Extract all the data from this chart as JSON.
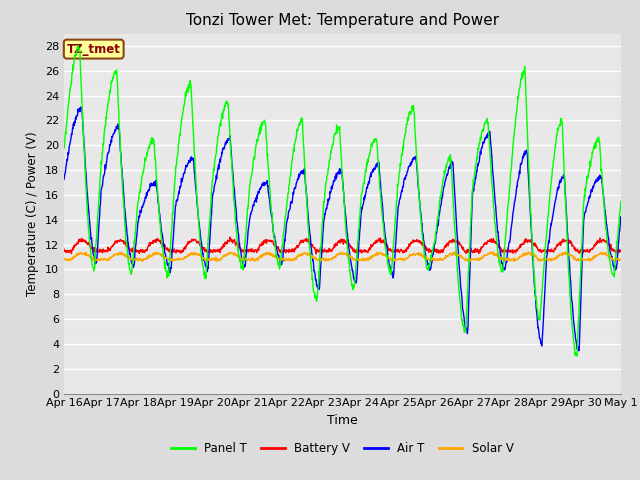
{
  "title": "Tonzi Tower Met: Temperature and Power",
  "xlabel": "Time",
  "ylabel": "Temperature (C) / Power (V)",
  "ylim": [
    0,
    29
  ],
  "yticks": [
    0,
    2,
    4,
    6,
    8,
    10,
    12,
    14,
    16,
    18,
    20,
    22,
    24,
    26,
    28
  ],
  "x_labels": [
    "Apr 16",
    "Apr 17",
    "Apr 18",
    "Apr 19",
    "Apr 20",
    "Apr 21",
    "Apr 22",
    "Apr 23",
    "Apr 24",
    "Apr 25",
    "Apr 26",
    "Apr 27",
    "Apr 28",
    "Apr 29",
    "Apr 30",
    "May 1"
  ],
  "colors": {
    "panel_t": "#00FF00",
    "battery_v": "#FF0000",
    "air_t": "#0000FF",
    "solar_v": "#FFA500"
  },
  "background_color": "#DCDCDC",
  "plot_bg_color": "#E8E8E8",
  "annotation_text": "TZ_tmet",
  "annotation_bg": "#FFFF99",
  "annotation_border": "#8B4513",
  "panel_t_peaks": [
    28.0,
    26.0,
    20.5,
    25.0,
    23.5,
    22.0,
    22.0,
    21.5,
    20.5,
    23.0,
    19.0,
    22.0,
    26.0,
    22.0,
    20.5
  ],
  "panel_t_troughs": [
    10.0,
    9.8,
    9.5,
    9.5,
    10.0,
    10.3,
    7.5,
    8.5,
    9.8,
    10.0,
    5.0,
    9.8,
    6.0,
    3.0,
    9.5
  ],
  "air_t_peaks": [
    23.0,
    21.5,
    17.0,
    19.0,
    20.5,
    17.0,
    18.0,
    18.0,
    18.5,
    19.0,
    18.5,
    21.0,
    19.5,
    17.5,
    17.5
  ],
  "air_t_troughs": [
    10.5,
    10.2,
    10.0,
    10.0,
    10.3,
    10.5,
    8.5,
    9.0,
    9.5,
    10.0,
    5.0,
    10.0,
    4.0,
    3.5,
    10.0
  ],
  "battery_v_base": 11.5,
  "solar_v_base": 10.8,
  "n_pts": 1500
}
